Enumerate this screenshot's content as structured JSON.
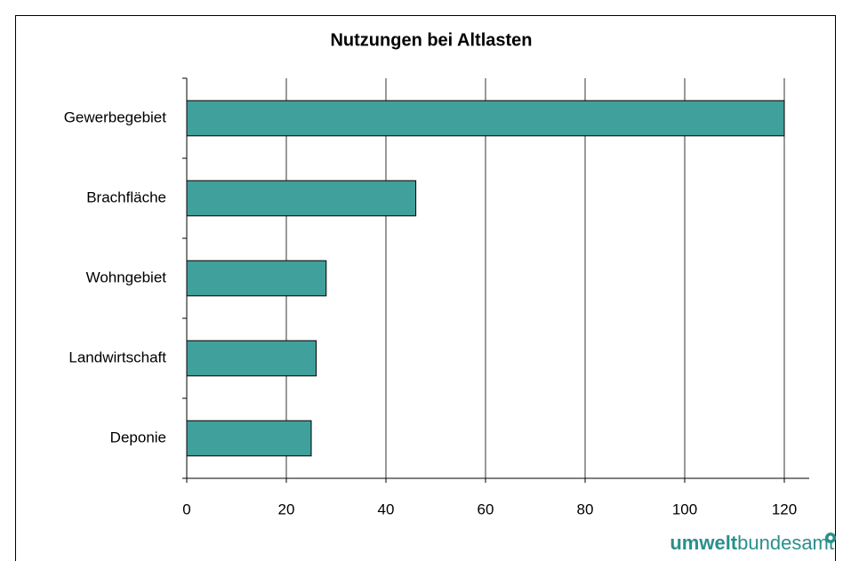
{
  "chart_data": {
    "type": "barh",
    "title": "Nutzungen bei Altlasten",
    "categories": [
      "Gewerbegebiet",
      "Brachfläche",
      "Wohngebiet",
      "Landwirtschaft",
      "Deponie"
    ],
    "values": [
      120,
      46,
      28,
      26,
      25
    ],
    "color": "#40a09c",
    "xlim": [
      0,
      125
    ],
    "xticks": [
      0,
      20,
      40,
      60,
      80,
      100,
      120
    ],
    "grid": true
  },
  "logo": {
    "bold": "umwelt",
    "regular": "bundesamt"
  }
}
